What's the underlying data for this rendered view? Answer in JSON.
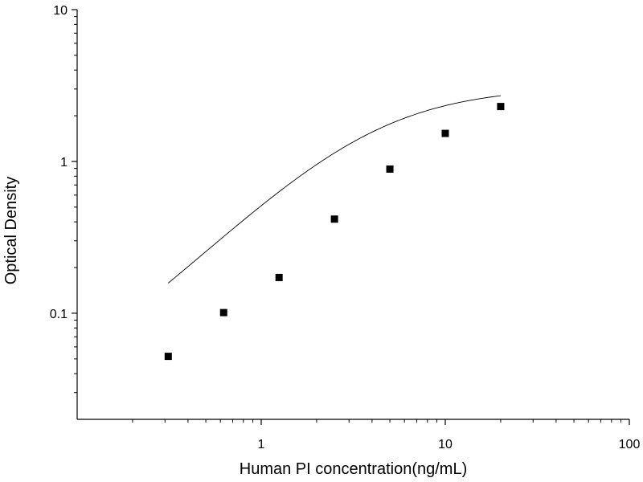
{
  "chart_data": {
    "type": "scatter",
    "title": "",
    "xlabel": "Human PI concentration(ng/mL)",
    "ylabel": "Optical Density",
    "x_scale": "log",
    "y_scale": "log",
    "xlim": [
      0.1,
      100
    ],
    "ylim": [
      0.02,
      10
    ],
    "x_ticks": [
      {
        "value": 1,
        "label": "1"
      },
      {
        "value": 10,
        "label": "10"
      },
      {
        "value": 100,
        "label": "100"
      }
    ],
    "y_ticks": [
      {
        "value": 0.1,
        "label": "0.1"
      },
      {
        "value": 1,
        "label": "1"
      },
      {
        "value": 10,
        "label": "10"
      }
    ],
    "grid": false,
    "legend": "none",
    "marker_color": "#000000",
    "curve_color": "#000000",
    "series": [
      {
        "marker": "square",
        "points": [
          {
            "x": 0.3125,
            "y": 0.052
          },
          {
            "x": 0.625,
            "y": 0.101
          },
          {
            "x": 1.25,
            "y": 0.172
          },
          {
            "x": 2.5,
            "y": 0.417
          },
          {
            "x": 5,
            "y": 0.89
          },
          {
            "x": 10,
            "y": 1.53
          },
          {
            "x": 20,
            "y": 2.3
          }
        ]
      }
    ],
    "fit_curve": {
      "type": "four-parameter-logistic",
      "x_range": [
        0.3125,
        20
      ],
      "params": {
        "bottom": 0.02,
        "top": 3.1,
        "ec50": 4.0,
        "hill": 1.2
      }
    }
  }
}
